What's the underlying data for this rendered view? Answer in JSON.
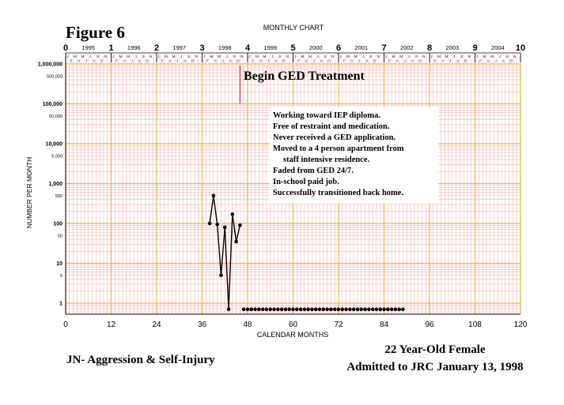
{
  "figure_label": "Figure 6",
  "chart_title": "MONTHLY CHART",
  "annotation_begin": "Begin GED Treatment",
  "notes": [
    "Working toward IEP diploma.",
    "Free of restraint and medication.",
    "Never received a GED application.",
    "Moved to a 4 person apartment from",
    "staff intensive residence.",
    "Faded from GED 24/7.",
    "In-school paid job.",
    "Successfully transitioned back home."
  ],
  "footer_left": "JN- Aggression & Self-Injury",
  "footer_right_line1": "22 Year-Old Female",
  "footer_right_line2": "Admitted to JRC January 13, 1998",
  "colors": {
    "grid_major": "#f5b055",
    "grid_minor": "#f7b5b5",
    "phase_line": "#dd2222",
    "data": "#000000"
  },
  "chart_data": {
    "type": "line",
    "scale": "log",
    "xlabel": "CALENDAR MONTHS",
    "ylabel": "NUMBER PER MONTH",
    "xlim": [
      0,
      120
    ],
    "ylim": [
      0.5,
      1000000
    ],
    "x_ticks": [
      0,
      12,
      24,
      36,
      48,
      60,
      72,
      84,
      96,
      108,
      120
    ],
    "y_ticks": [
      {
        "value": 1000000,
        "label": "1,000,000",
        "bold": true
      },
      {
        "value": 500000,
        "label": "500,000",
        "bold": false
      },
      {
        "value": 100000,
        "label": "100,000",
        "bold": true
      },
      {
        "value": 50000,
        "label": "50,000",
        "bold": false
      },
      {
        "value": 10000,
        "label": "10,000",
        "bold": true
      },
      {
        "value": 5000,
        "label": "5,000",
        "bold": false
      },
      {
        "value": 1000,
        "label": "1,000",
        "bold": true
      },
      {
        "value": 500,
        "label": "500",
        "bold": false
      },
      {
        "value": 100,
        "label": "100",
        "bold": true
      },
      {
        "value": 50,
        "label": "50",
        "bold": false
      },
      {
        "value": 10,
        "label": "10",
        "bold": true
      },
      {
        "value": 5,
        "label": "5",
        "bold": false
      },
      {
        "value": 1,
        "label": "1",
        "bold": true
      }
    ],
    "top_year_numbers": [
      "0",
      "1",
      "2",
      "3",
      "4",
      "5",
      "6",
      "7",
      "8",
      "9",
      "10"
    ],
    "top_years": [
      "1995",
      "1996",
      "1997",
      "1998",
      "1999",
      "2000",
      "2001",
      "2002",
      "2003",
      "2004"
    ],
    "month_letters_upper": [
      "J",
      "M",
      "M",
      "J",
      "S",
      "N"
    ],
    "month_letters_lower": [
      "F",
      "A",
      "J",
      "A",
      "O"
    ],
    "phase_change_month": 46,
    "series": [
      {
        "x": [
          38,
          39,
          40,
          41,
          42,
          43,
          44,
          45,
          46
        ],
        "y": [
          100,
          500,
          95,
          5,
          80,
          0.7,
          170,
          35,
          90
        ],
        "connected": true
      },
      {
        "x": [
          47,
          48,
          49,
          50,
          51,
          52,
          53,
          54,
          55,
          56,
          57,
          58,
          59,
          60,
          61,
          62,
          63,
          64,
          65,
          66,
          67,
          68,
          69,
          70,
          71,
          72,
          73,
          74,
          75,
          76,
          77,
          78,
          79,
          80,
          81,
          82,
          83,
          84,
          85,
          86,
          87,
          88,
          89
        ],
        "y": [
          0.7,
          0.7,
          0.7,
          0.7,
          0.7,
          0.7,
          0.7,
          0.7,
          0.7,
          0.7,
          0.7,
          0.7,
          0.7,
          0.7,
          0.7,
          0.7,
          0.7,
          0.7,
          0.7,
          0.7,
          0.7,
          0.7,
          0.7,
          0.7,
          0.7,
          0.7,
          0.7,
          0.7,
          0.7,
          0.7,
          0.7,
          0.7,
          0.7,
          0.7,
          0.7,
          0.7,
          0.7,
          0.7,
          0.7,
          0.7,
          0.7,
          0.7,
          0.7
        ],
        "connected": false
      }
    ]
  }
}
